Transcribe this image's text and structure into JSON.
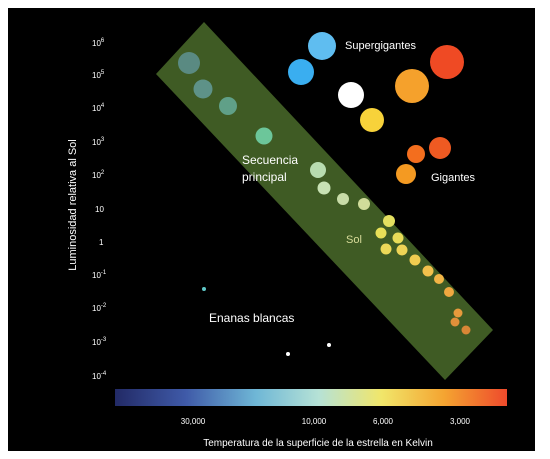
{
  "diagram": {
    "y_axis_label": "Luminosidad relativa al Sol",
    "x_axis_label": "Temperatura de la superficie de la estrella en Kelvin",
    "y_ticks": [
      {
        "base": "10",
        "exp": "6"
      },
      {
        "base": "10",
        "exp": "5"
      },
      {
        "base": "10",
        "exp": "4"
      },
      {
        "base": "10",
        "exp": "3"
      },
      {
        "base": "10",
        "exp": "2"
      },
      {
        "base": "10",
        "exp": ""
      },
      {
        "base": "1",
        "exp": ""
      },
      {
        "base": "10",
        "exp": "-1"
      },
      {
        "base": "10",
        "exp": "-2"
      },
      {
        "base": "10",
        "exp": "-3"
      },
      {
        "base": "10",
        "exp": "-4"
      }
    ],
    "x_ticks": [
      "30,000",
      "10,000",
      "6,000",
      "3,000"
    ],
    "regions": {
      "supergiants": "Supergigantes",
      "main_sequence_line1": "Secuencia",
      "main_sequence_line2": "principal",
      "sun": "Sol",
      "giants": "Gigantes",
      "white_dwarfs": "Enanas blancas"
    },
    "colors": {
      "background": "#000000",
      "main_sequence_band": "#4a6b2a",
      "colorbar_stops": [
        "#222a66",
        "#3f5aa8",
        "#6fb7d6",
        "#b6e2d6",
        "#f1e66a",
        "#f4a431",
        "#ee4a2c"
      ]
    }
  }
}
